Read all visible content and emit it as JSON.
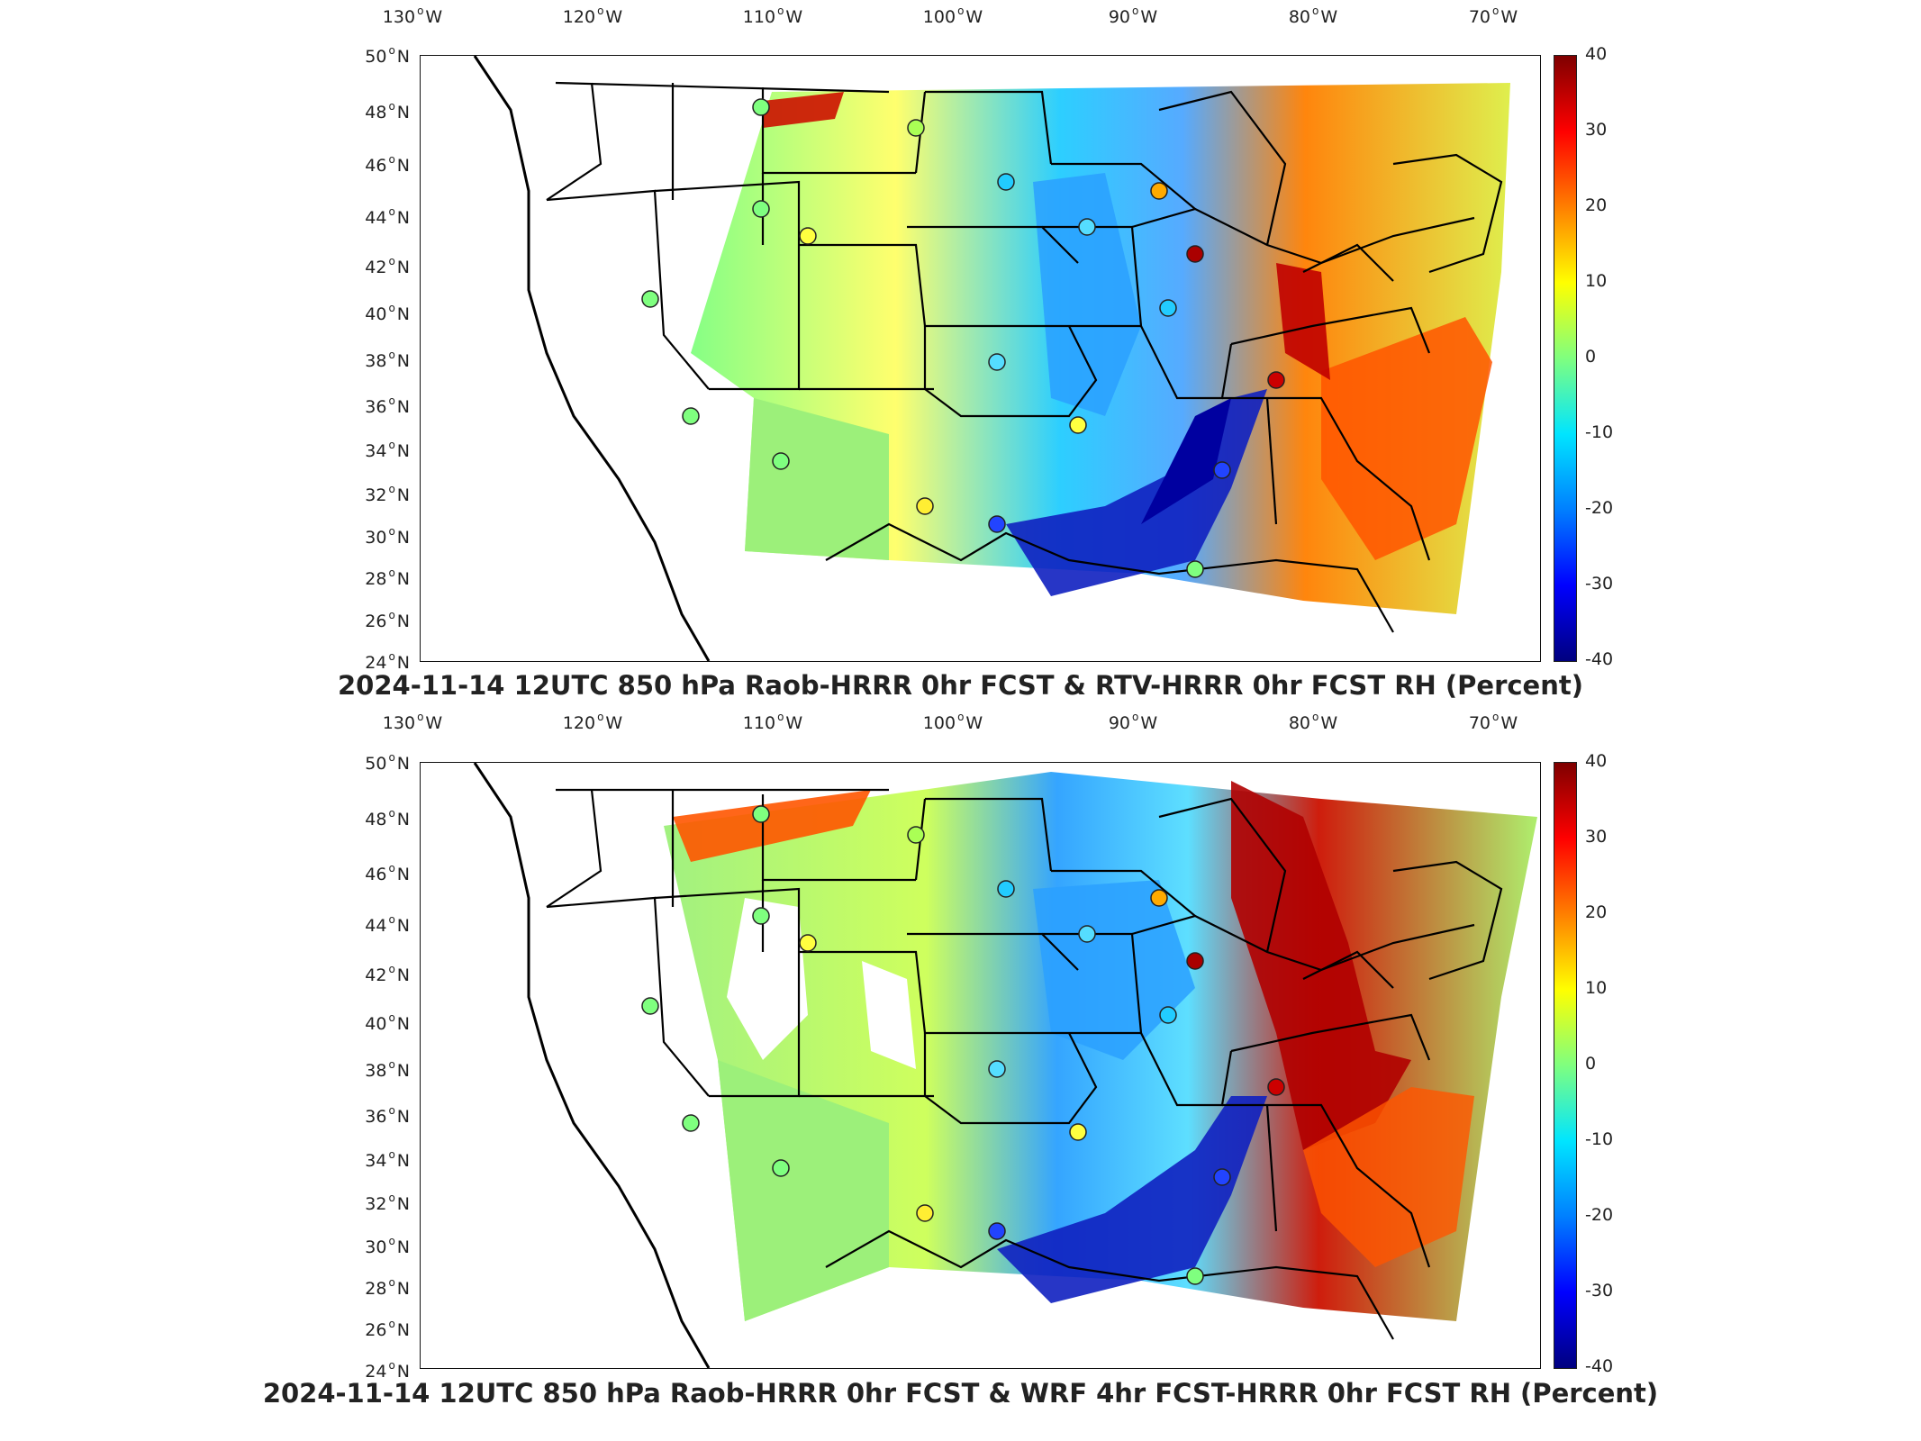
{
  "lon_labels": [
    {
      "deg": "130",
      "dir": "W"
    },
    {
      "deg": "120",
      "dir": "W"
    },
    {
      "deg": "110",
      "dir": "W"
    },
    {
      "deg": "100",
      "dir": "W"
    },
    {
      "deg": "90",
      "dir": "W"
    },
    {
      "deg": "80",
      "dir": "W"
    },
    {
      "deg": "70",
      "dir": "W"
    }
  ],
  "lat_labels": [
    {
      "deg": "50",
      "dir": "N"
    },
    {
      "deg": "48",
      "dir": "N"
    },
    {
      "deg": "46",
      "dir": "N"
    },
    {
      "deg": "44",
      "dir": "N"
    },
    {
      "deg": "42",
      "dir": "N"
    },
    {
      "deg": "40",
      "dir": "N"
    },
    {
      "deg": "38",
      "dir": "N"
    },
    {
      "deg": "36",
      "dir": "N"
    },
    {
      "deg": "34",
      "dir": "N"
    },
    {
      "deg": "32",
      "dir": "N"
    },
    {
      "deg": "30",
      "dir": "N"
    },
    {
      "deg": "28",
      "dir": "N"
    },
    {
      "deg": "26",
      "dir": "N"
    },
    {
      "deg": "24",
      "dir": "N"
    }
  ],
  "colorbar": {
    "ticks": [
      "40",
      "30",
      "20",
      "10",
      "0",
      "-10",
      "-20",
      "-30",
      "-40"
    ],
    "range": [
      -40,
      40
    ],
    "colormap": "jet"
  },
  "panels": [
    {
      "title": "2024-11-14 12UTC 850 hPa Raob-HRRR 0hr FCST & RTV-HRRR 0hr FCST RH (Percent)"
    },
    {
      "title": "2024-11-14 12UTC 850 hPa Raob-HRRR 0hr FCST & WRF 4hr FCST-HRRR 0hr FCST RH (Percent)"
    }
  ],
  "colors": {
    "frame": "#111111",
    "state_lines": "#000000",
    "text": "#222222"
  }
}
